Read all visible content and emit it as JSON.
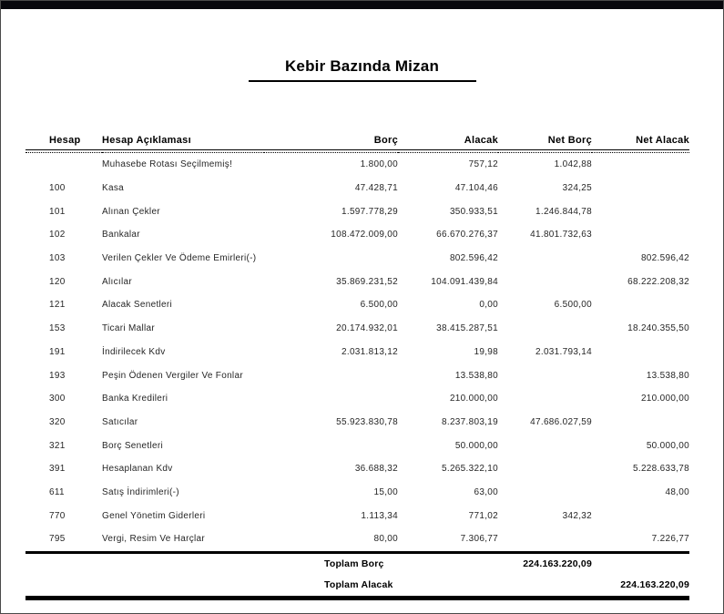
{
  "window": {
    "bar_color": "#07070c",
    "border_color": "#4a4a4a",
    "background": "#ffffff"
  },
  "report": {
    "title": "Kebir Bazında Mizan",
    "columns": [
      {
        "key": "hesap",
        "label": "Hesap",
        "align": "left"
      },
      {
        "key": "aciklama",
        "label": "Hesap Açıklaması",
        "align": "left"
      },
      {
        "key": "borc",
        "label": "Borç",
        "align": "right"
      },
      {
        "key": "alacak",
        "label": "Alacak",
        "align": "right"
      },
      {
        "key": "net_borc",
        "label": "Net Borç",
        "align": "right"
      },
      {
        "key": "net_alacak",
        "label": "Net Alacak",
        "align": "right"
      }
    ],
    "rows": [
      {
        "hesap": "",
        "aciklama": "Muhasebe Rotası Seçilmemiş!",
        "borc": "1.800,00",
        "alacak": "757,12",
        "net_borc": "1.042,88",
        "net_alacak": ""
      },
      {
        "hesap": "100",
        "aciklama": "Kasa",
        "borc": "47.428,71",
        "alacak": "47.104,46",
        "net_borc": "324,25",
        "net_alacak": ""
      },
      {
        "hesap": "101",
        "aciklama": "Alınan Çekler",
        "borc": "1.597.778,29",
        "alacak": "350.933,51",
        "net_borc": "1.246.844,78",
        "net_alacak": ""
      },
      {
        "hesap": "102",
        "aciklama": "Bankalar",
        "borc": "108.472.009,00",
        "alacak": "66.670.276,37",
        "net_borc": "41.801.732,63",
        "net_alacak": ""
      },
      {
        "hesap": "103",
        "aciklama": "Verilen Çekler Ve Ödeme Emirleri(-)",
        "borc": "",
        "alacak": "802.596,42",
        "net_borc": "",
        "net_alacak": "802.596,42"
      },
      {
        "hesap": "120",
        "aciklama": "Alıcılar",
        "borc": "35.869.231,52",
        "alacak": "104.091.439,84",
        "net_borc": "",
        "net_alacak": "68.222.208,32"
      },
      {
        "hesap": "121",
        "aciklama": "Alacak Senetleri",
        "borc": "6.500,00",
        "alacak": "0,00",
        "net_borc": "6.500,00",
        "net_alacak": ""
      },
      {
        "hesap": "153",
        "aciklama": "Ticari Mallar",
        "borc": "20.174.932,01",
        "alacak": "38.415.287,51",
        "net_borc": "",
        "net_alacak": "18.240.355,50"
      },
      {
        "hesap": "191",
        "aciklama": "İndirilecek Kdv",
        "borc": "2.031.813,12",
        "alacak": "19,98",
        "net_borc": "2.031.793,14",
        "net_alacak": ""
      },
      {
        "hesap": "193",
        "aciklama": "Peşin Ödenen Vergiler Ve Fonlar",
        "borc": "",
        "alacak": "13.538,80",
        "net_borc": "",
        "net_alacak": "13.538,80"
      },
      {
        "hesap": "300",
        "aciklama": "Banka Kredileri",
        "borc": "",
        "alacak": "210.000,00",
        "net_borc": "",
        "net_alacak": "210.000,00"
      },
      {
        "hesap": "320",
        "aciklama": "Satıcılar",
        "borc": "55.923.830,78",
        "alacak": "8.237.803,19",
        "net_borc": "47.686.027,59",
        "net_alacak": ""
      },
      {
        "hesap": "321",
        "aciklama": "Borç Senetleri",
        "borc": "",
        "alacak": "50.000,00",
        "net_borc": "",
        "net_alacak": "50.000,00"
      },
      {
        "hesap": "391",
        "aciklama": "Hesaplanan Kdv",
        "borc": "36.688,32",
        "alacak": "5.265.322,10",
        "net_borc": "",
        "net_alacak": "5.228.633,78"
      },
      {
        "hesap": "611",
        "aciklama": "Satış İndirimleri(-)",
        "borc": "15,00",
        "alacak": "63,00",
        "net_borc": "",
        "net_alacak": "48,00"
      },
      {
        "hesap": "770",
        "aciklama": "Genel Yönetim Giderleri",
        "borc": "1.113,34",
        "alacak": "771,02",
        "net_borc": "342,32",
        "net_alacak": ""
      },
      {
        "hesap": "795",
        "aciklama": "Vergi, Resim Ve Harçlar",
        "borc": "80,00",
        "alacak": "7.306,77",
        "net_borc": "",
        "net_alacak": "7.226,77"
      }
    ],
    "totals": [
      {
        "label": "Toplam Borç",
        "value": "224.163.220,09",
        "column": "net_borc"
      },
      {
        "label": "Toplam Alacak",
        "value": "224.163.220,09",
        "column": "net_alacak"
      }
    ]
  }
}
